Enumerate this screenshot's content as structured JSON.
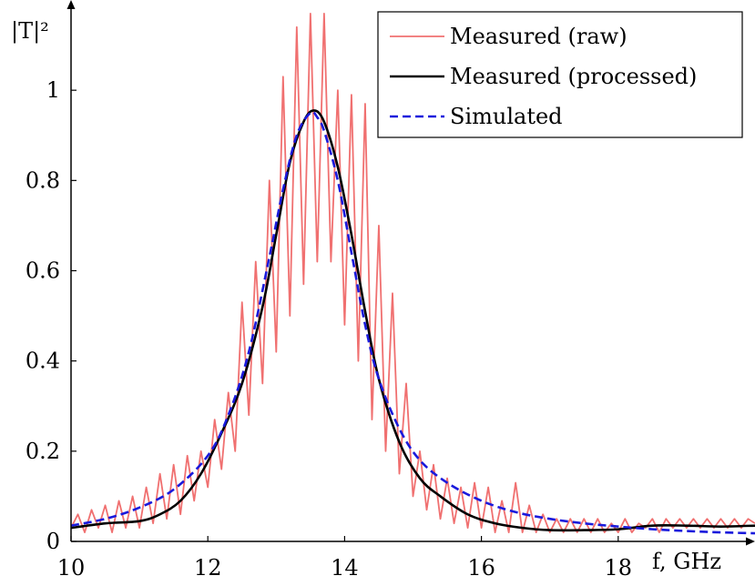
{
  "chart_data": {
    "type": "line",
    "xlabel": "f, GHz",
    "ylabel": "|T|²",
    "xlim": [
      10,
      20
    ],
    "ylim": [
      0,
      1.2
    ],
    "xticks": [
      10,
      12,
      14,
      16,
      18
    ],
    "yticks": [
      0,
      0.2,
      0.4,
      0.6,
      0.8,
      1
    ],
    "xtick_labels": [
      "10",
      "12",
      "14",
      "16",
      "18"
    ],
    "ytick_labels": [
      "0",
      "0.2",
      "0.4",
      "0.6",
      "0.8",
      "1"
    ],
    "grid": false,
    "legend_position": "top-right",
    "series": [
      {
        "name": "Measured (raw)",
        "color": "#f07070",
        "style": "solid",
        "x": [
          10.0,
          10.1,
          10.2,
          10.3,
          10.4,
          10.5,
          10.6,
          10.7,
          10.8,
          10.9,
          11.0,
          11.1,
          11.2,
          11.3,
          11.4,
          11.5,
          11.6,
          11.7,
          11.8,
          11.9,
          12.0,
          12.1,
          12.2,
          12.3,
          12.4,
          12.5,
          12.6,
          12.7,
          12.8,
          12.9,
          13.0,
          13.1,
          13.2,
          13.3,
          13.4,
          13.5,
          13.6,
          13.7,
          13.8,
          13.9,
          14.0,
          14.1,
          14.2,
          14.3,
          14.4,
          14.5,
          14.6,
          14.7,
          14.8,
          14.9,
          15.0,
          15.1,
          15.2,
          15.3,
          15.4,
          15.5,
          15.6,
          15.7,
          15.8,
          15.9,
          16.0,
          16.1,
          16.2,
          16.3,
          16.4,
          16.5,
          16.6,
          16.7,
          16.8,
          16.9,
          17.0,
          17.1,
          17.2,
          17.3,
          17.4,
          17.5,
          17.6,
          17.7,
          17.8,
          17.9,
          18.0,
          18.1,
          18.2,
          18.3,
          18.4,
          18.5,
          18.6,
          18.7,
          18.8,
          18.9,
          19.0,
          19.1,
          19.2,
          19.3,
          19.4,
          19.5,
          19.6,
          19.7,
          19.8,
          19.9,
          20.0
        ],
        "y": [
          0.03,
          0.06,
          0.02,
          0.07,
          0.03,
          0.08,
          0.02,
          0.09,
          0.03,
          0.1,
          0.03,
          0.12,
          0.04,
          0.15,
          0.05,
          0.17,
          0.06,
          0.19,
          0.09,
          0.2,
          0.12,
          0.27,
          0.16,
          0.33,
          0.2,
          0.53,
          0.28,
          0.62,
          0.35,
          0.8,
          0.42,
          1.03,
          0.5,
          1.14,
          0.57,
          1.17,
          0.62,
          1.17,
          0.62,
          1.0,
          0.48,
          0.99,
          0.4,
          0.97,
          0.27,
          0.7,
          0.2,
          0.55,
          0.15,
          0.35,
          0.1,
          0.2,
          0.07,
          0.17,
          0.05,
          0.14,
          0.04,
          0.12,
          0.03,
          0.13,
          0.03,
          0.12,
          0.02,
          0.09,
          0.02,
          0.13,
          0.02,
          0.08,
          0.02,
          0.06,
          0.02,
          0.05,
          0.02,
          0.05,
          0.02,
          0.05,
          0.02,
          0.05,
          0.02,
          0.04,
          0.02,
          0.05,
          0.02,
          0.04,
          0.03,
          0.05,
          0.02,
          0.05,
          0.03,
          0.05,
          0.03,
          0.05,
          0.03,
          0.05,
          0.03,
          0.05,
          0.03,
          0.05,
          0.03,
          0.05,
          0.04
        ]
      },
      {
        "name": "Measured (processed)",
        "color": "#000000",
        "style": "solid",
        "x": [
          10.0,
          10.5,
          11.0,
          11.3,
          11.6,
          11.9,
          12.2,
          12.5,
          12.8,
          13.0,
          13.2,
          13.4,
          13.55,
          13.7,
          13.9,
          14.1,
          14.3,
          14.5,
          14.8,
          15.1,
          15.4,
          15.8,
          16.2,
          16.6,
          17.0,
          17.5,
          18.0,
          18.5,
          19.0,
          19.5,
          20.0
        ],
        "y": [
          0.03,
          0.04,
          0.045,
          0.06,
          0.09,
          0.15,
          0.24,
          0.35,
          0.52,
          0.68,
          0.84,
          0.93,
          0.955,
          0.93,
          0.83,
          0.68,
          0.51,
          0.36,
          0.22,
          0.14,
          0.1,
          0.06,
          0.04,
          0.03,
          0.025,
          0.025,
          0.027,
          0.035,
          0.035,
          0.033,
          0.035
        ]
      },
      {
        "name": "Simulated",
        "color": "#1a1adc",
        "style": "dashed",
        "x": [
          10.0,
          10.5,
          11.0,
          11.5,
          12.0,
          12.3,
          12.6,
          12.9,
          13.1,
          13.3,
          13.5,
          13.6,
          13.7,
          13.9,
          14.1,
          14.3,
          14.5,
          14.8,
          15.1,
          15.5,
          16.0,
          16.5,
          17.0,
          17.5,
          18.0,
          18.5,
          19.0,
          19.5,
          20.0
        ],
        "y": [
          0.035,
          0.05,
          0.075,
          0.115,
          0.19,
          0.28,
          0.42,
          0.63,
          0.78,
          0.9,
          0.95,
          0.94,
          0.91,
          0.8,
          0.64,
          0.48,
          0.36,
          0.25,
          0.18,
          0.13,
          0.09,
          0.065,
          0.05,
          0.04,
          0.033,
          0.027,
          0.023,
          0.02,
          0.018
        ]
      }
    ]
  }
}
